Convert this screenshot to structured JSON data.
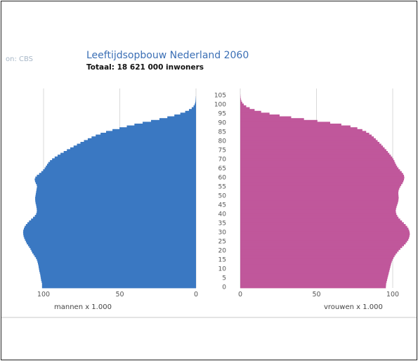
{
  "page": {
    "source_text": "on: CBS"
  },
  "chart_data": {
    "type": "bar",
    "title": "Leeftijdsopbouw Nederland 2060",
    "subtitle": "Totaal: 18 621 000 inwoners",
    "orientation": "horizontal-pyramid",
    "ages": [
      0,
      1,
      2,
      3,
      4,
      5,
      6,
      7,
      8,
      9,
      10,
      11,
      12,
      13,
      14,
      15,
      16,
      17,
      18,
      19,
      20,
      21,
      22,
      23,
      24,
      25,
      26,
      27,
      28,
      29,
      30,
      31,
      32,
      33,
      34,
      35,
      36,
      37,
      38,
      39,
      40,
      41,
      42,
      43,
      44,
      45,
      46,
      47,
      48,
      49,
      50,
      51,
      52,
      53,
      54,
      55,
      56,
      57,
      58,
      59,
      60,
      61,
      62,
      63,
      64,
      65,
      66,
      67,
      68,
      69,
      70,
      71,
      72,
      73,
      74,
      75,
      76,
      77,
      78,
      79,
      80,
      81,
      82,
      83,
      84,
      85,
      86,
      87,
      88,
      89,
      90,
      91,
      92,
      93,
      94,
      95,
      96,
      97,
      98,
      99,
      100,
      101,
      102,
      103,
      104,
      105
    ],
    "series": [
      {
        "name": "mannen x 1.000",
        "color": "#3a78c2",
        "values": [
          101,
          101,
          101,
          101.3,
          101.6,
          101.8,
          102,
          102.2,
          102.5,
          102.8,
          103,
          103.2,
          103.4,
          103.7,
          104,
          104.4,
          105,
          105.8,
          106.6,
          107.4,
          108,
          108.6,
          109.4,
          110.2,
          111,
          111.6,
          112.2,
          112.7,
          113.1,
          113.3,
          113.4,
          113.3,
          112.9,
          112.4,
          111.6,
          110.6,
          109.5,
          108.2,
          106.9,
          105.7,
          104.9,
          104.5,
          104.4,
          104.5,
          104.7,
          104.9,
          105.2,
          105.4,
          105.5,
          105.5,
          105.3,
          105.1,
          104.9,
          104.7,
          104.5,
          104.3,
          104.5,
          105.1,
          105.6,
          105.8,
          105.4,
          104.4,
          102.9,
          101.5,
          100.3,
          99.3,
          98.5,
          97.7,
          96.9,
          95.8,
          94.4,
          92.7,
          90.8,
          88.9,
          86.8,
          84.7,
          82.5,
          80.3,
          78.1,
          75.8,
          73.5,
          71,
          68.5,
          65.8,
          62.6,
          59,
          54.8,
          50.2,
          45.4,
          40.4,
          35,
          29.5,
          24,
          18.8,
          14.2,
          10.3,
          7.1,
          4.6,
          2.8,
          1.6,
          0.9,
          0.5,
          0.3,
          0.2,
          0.1,
          0
        ]
      },
      {
        "name": "vrouwen x 1.000",
        "color": "#c0579b",
        "values": [
          95.5,
          95.6,
          95.7,
          96,
          96.3,
          96.6,
          96.9,
          97.2,
          97.5,
          97.8,
          98.1,
          98.4,
          98.7,
          99,
          99.4,
          99.9,
          100.5,
          101.2,
          102,
          102.9,
          103.9,
          105,
          106.2,
          107.4,
          108.5,
          109.4,
          110.2,
          110.7,
          111,
          111.2,
          111.1,
          110.8,
          110.3,
          109.5,
          108.5,
          107.3,
          106.1,
          104.9,
          103.8,
          103,
          102.4,
          102.1,
          102,
          102.2,
          102.5,
          102.9,
          103.3,
          103.6,
          103.8,
          103.9,
          103.8,
          103.7,
          103.7,
          103.9,
          104.3,
          104.9,
          105.6,
          106.4,
          107,
          107.4,
          107.6,
          107.4,
          106.8,
          105.9,
          104.8,
          103.8,
          102.9,
          102.2,
          101.6,
          101.1,
          100.5,
          99.7,
          98.8,
          97.8,
          96.8,
          95.8,
          94.7,
          93.6,
          92.5,
          91.3,
          90.1,
          88.9,
          87.6,
          86.2,
          84.6,
          82.6,
          80.1,
          76.8,
          72.3,
          66.3,
          59,
          50.6,
          41.8,
          33.4,
          25.8,
          19.2,
          13.7,
          9.4,
          6.2,
          3.9,
          2.3,
          1.3,
          0.7,
          0.4,
          0.2,
          0.1
        ]
      }
    ],
    "x_left": {
      "ticks": [
        100,
        50,
        0
      ],
      "label": "mannen x 1.000",
      "range": [
        0,
        100
      ]
    },
    "x_right": {
      "ticks": [
        0,
        50,
        100
      ],
      "label": "vrouwen x 1.000",
      "range": [
        0,
        100
      ]
    },
    "y_age_ticks": [
      0,
      5,
      10,
      15,
      20,
      25,
      30,
      35,
      40,
      45,
      50,
      55,
      60,
      65,
      70,
      75,
      80,
      85,
      90,
      95,
      100,
      105
    ],
    "grid": true
  }
}
